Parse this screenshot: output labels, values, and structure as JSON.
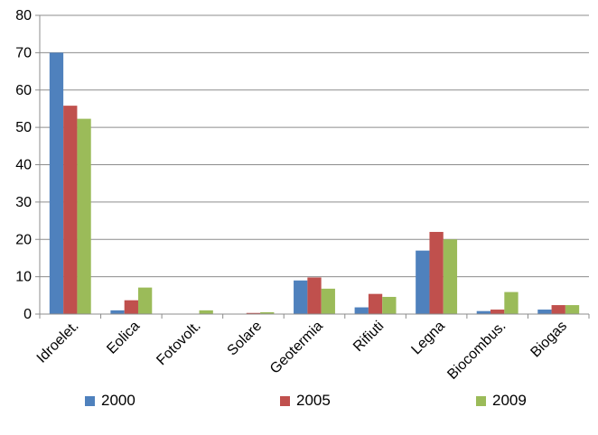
{
  "chart_data": {
    "type": "bar",
    "title": "",
    "xlabel": "",
    "ylabel": "",
    "ylim": [
      0,
      80
    ],
    "yticks": [
      0,
      10,
      20,
      30,
      40,
      50,
      60,
      70,
      80
    ],
    "grid": true,
    "legend_position": "bottom",
    "categories": [
      "Idroelet.",
      "Eolica",
      "Fotovolt.",
      "Solare",
      "Geotermia",
      "Rifiuti",
      "Legna",
      "Biocombus.",
      "Biogas"
    ],
    "series": [
      {
        "name": "2000",
        "color": "#4F81BD",
        "values": [
          70,
          1,
          0,
          0,
          9,
          1.8,
          17,
          0.8,
          1.2
        ]
      },
      {
        "name": "2005",
        "color": "#C0504D",
        "values": [
          55.8,
          3.7,
          0,
          0.3,
          9.8,
          5.4,
          22,
          1.2,
          2.4
        ]
      },
      {
        "name": "2009",
        "color": "#9BBB59",
        "values": [
          52.3,
          7.1,
          1,
          0.5,
          6.8,
          4.6,
          20,
          5.9,
          2.4
        ]
      }
    ]
  }
}
